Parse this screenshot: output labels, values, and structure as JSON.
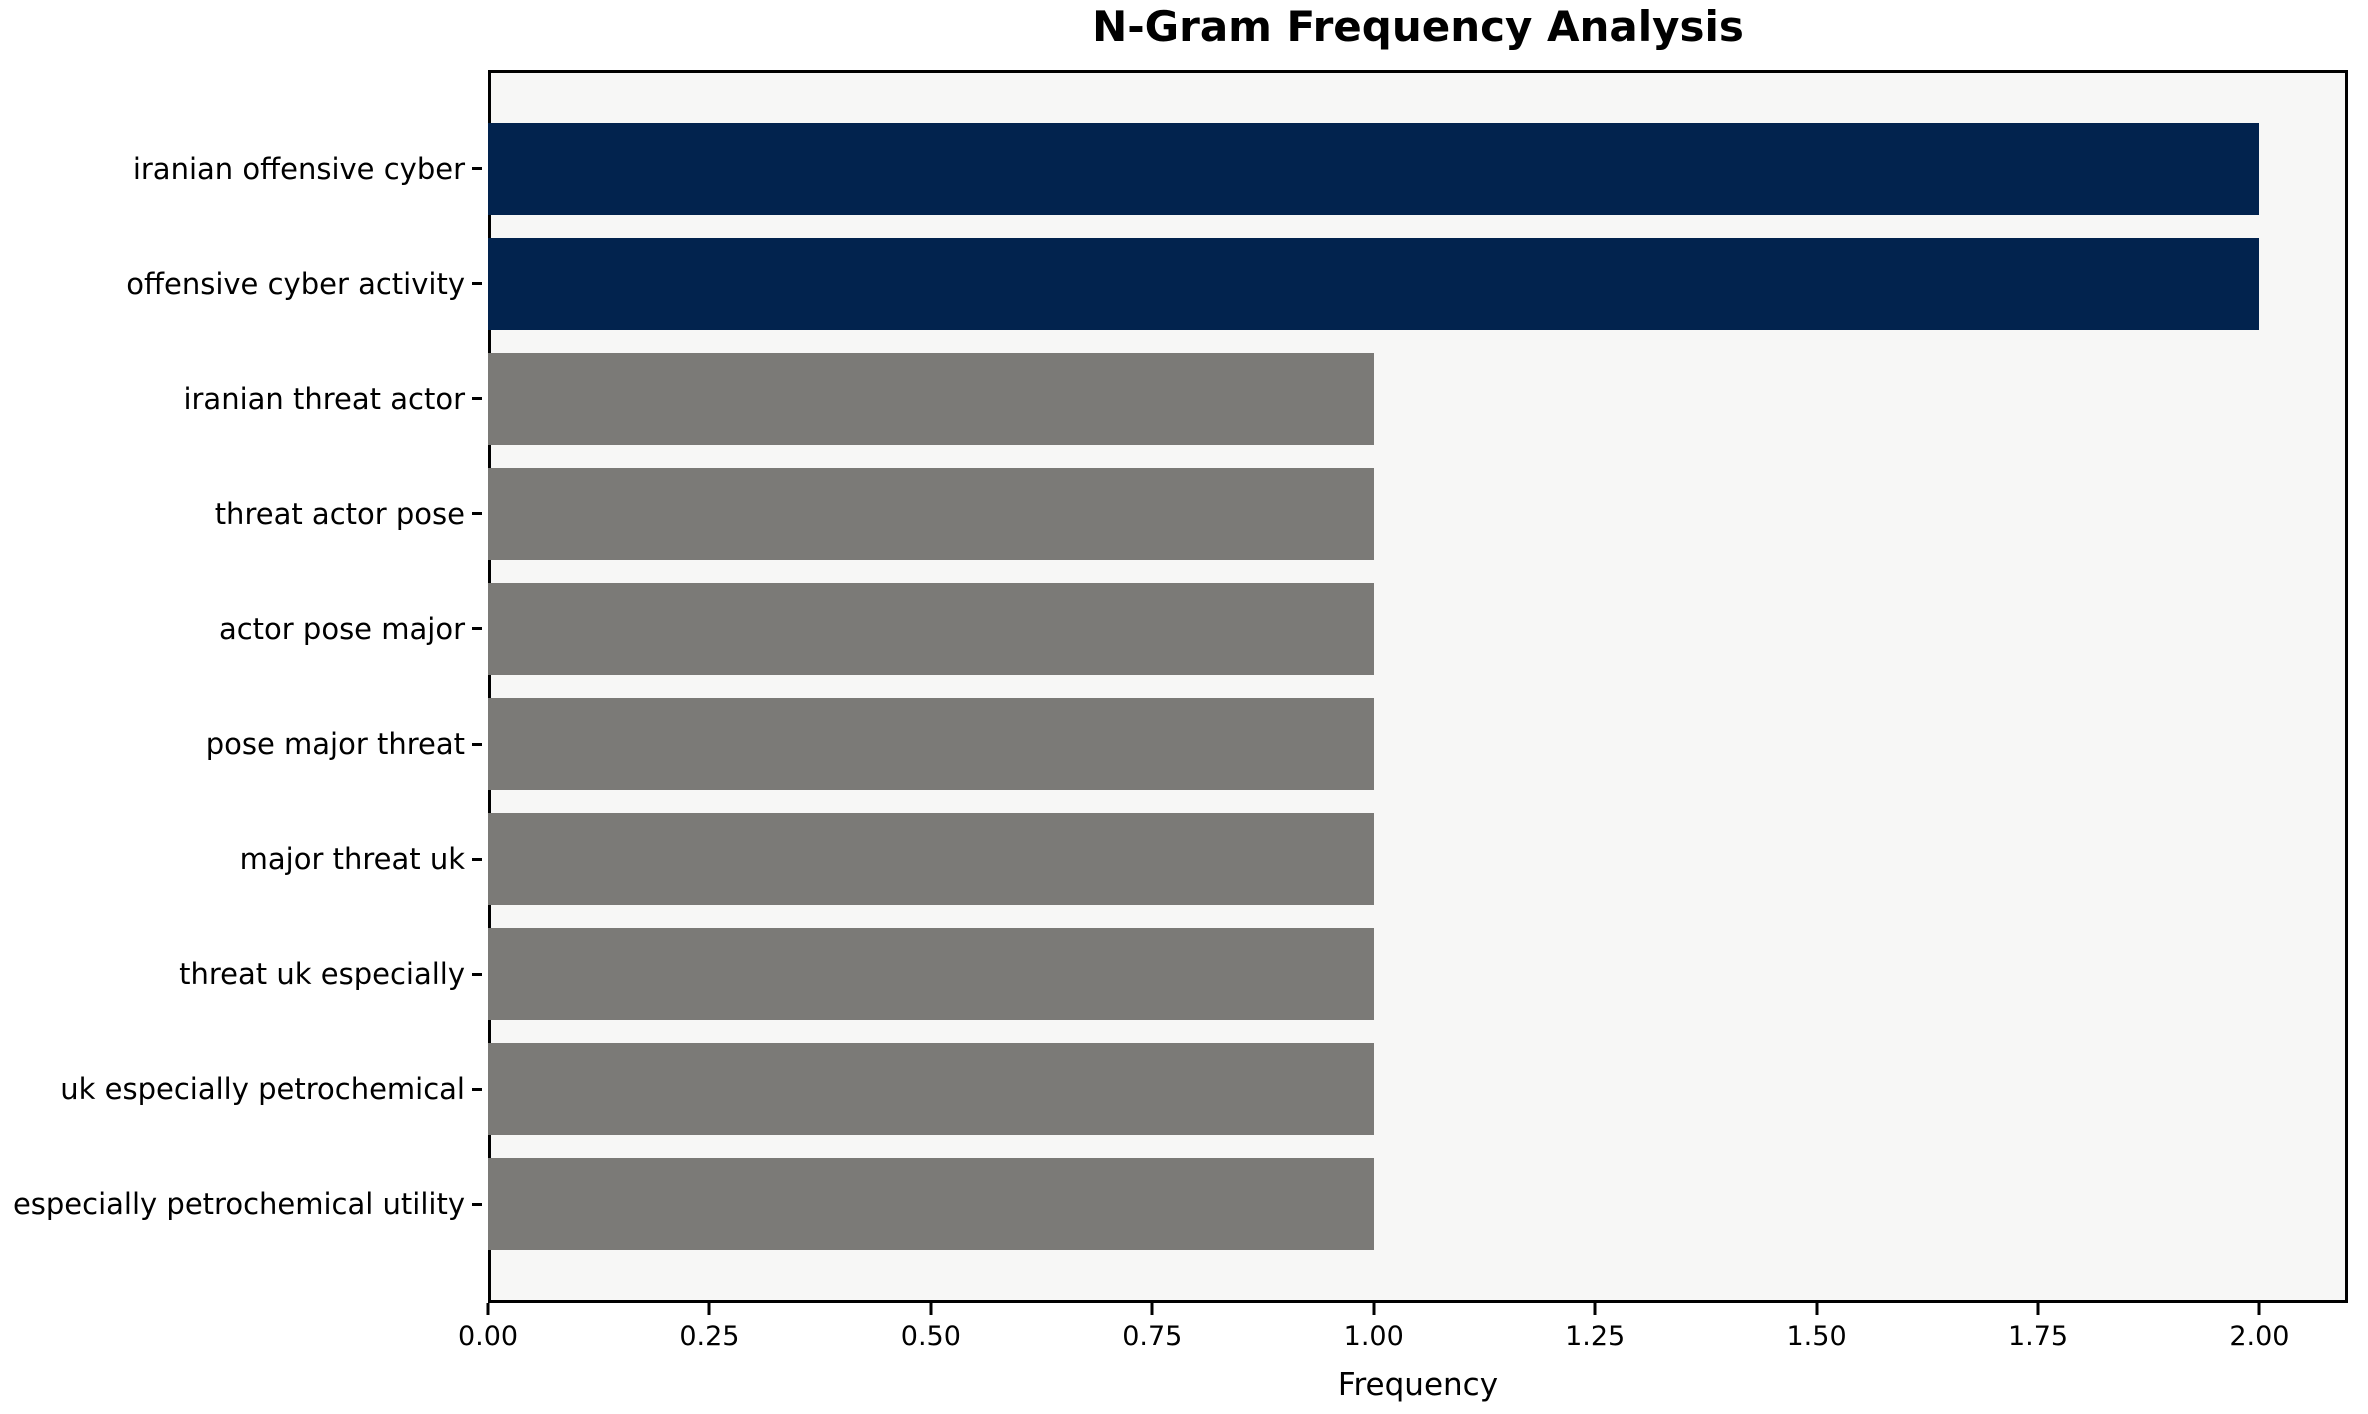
{
  "chart_data": {
    "type": "bar",
    "orientation": "horizontal",
    "title": "N-Gram Frequency Analysis",
    "xlabel": "Frequency",
    "ylabel": "",
    "categories": [
      "iranian offensive cyber",
      "offensive cyber activity",
      "iranian threat actor",
      "threat actor pose",
      "actor pose major",
      "pose major threat",
      "major threat uk",
      "threat uk especially",
      "uk especially petrochemical",
      "especially petrochemical utility"
    ],
    "values": [
      2,
      2,
      1,
      1,
      1,
      1,
      1,
      1,
      1,
      1
    ],
    "bar_colors": [
      "#02234e",
      "#02234e",
      "#7b7a77",
      "#7b7a77",
      "#7b7a77",
      "#7b7a77",
      "#7b7a77",
      "#7b7a77",
      "#7b7a77",
      "#7b7a77"
    ],
    "highlight_color": "#02234e",
    "default_color": "#7b7a77",
    "plot_background": "#f7f7f6",
    "figure_background": "#ffffff",
    "xlim": [
      0,
      2.1
    ],
    "xticks": [
      0,
      0.25,
      0.5,
      0.75,
      1.0,
      1.25,
      1.5,
      1.75,
      2.0
    ],
    "xtick_labels": [
      "0.00",
      "0.25",
      "0.50",
      "0.75",
      "1.00",
      "1.25",
      "1.50",
      "1.75",
      "2.00"
    ],
    "grid": false,
    "legend": null
  }
}
